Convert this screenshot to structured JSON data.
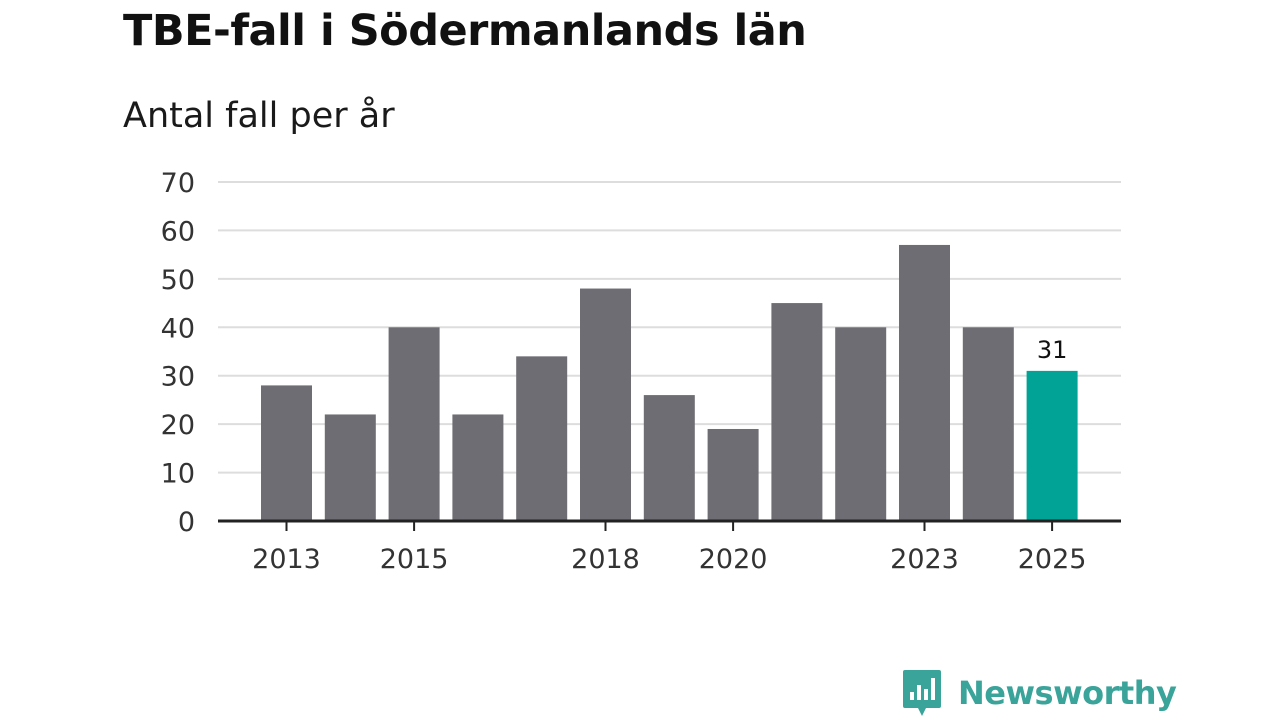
{
  "title": "TBE-fall i Södermanlands län",
  "subtitle": "Antal fall per år",
  "colors": {
    "bar": "#6e6d73",
    "highlight": "#00a396",
    "grid": "#dddddd",
    "axis": "#222222",
    "brand": "#3aa39a"
  },
  "brand": {
    "name": "Newsworthy",
    "icon": "newsworthy-logo-icon"
  },
  "chart_data": {
    "type": "bar",
    "title": "TBE-fall i Södermanlands län",
    "ylabel": "Antal fall per år",
    "xlabel": "",
    "categories": [
      "2013",
      "2014",
      "2015",
      "2016",
      "2017",
      "2018",
      "2019",
      "2020",
      "2021",
      "2022",
      "2023",
      "2024",
      "2025"
    ],
    "values": [
      28,
      22,
      40,
      22,
      34,
      48,
      26,
      19,
      45,
      40,
      57,
      40,
      31
    ],
    "x_tick_labels": [
      "2013",
      "2015",
      "2018",
      "2020",
      "2023",
      "2025"
    ],
    "y_ticks": [
      0,
      10,
      20,
      30,
      40,
      50,
      60,
      70
    ],
    "ylim": [
      0,
      70
    ],
    "grid": true,
    "highlight": {
      "category": "2025",
      "label": "31"
    }
  }
}
